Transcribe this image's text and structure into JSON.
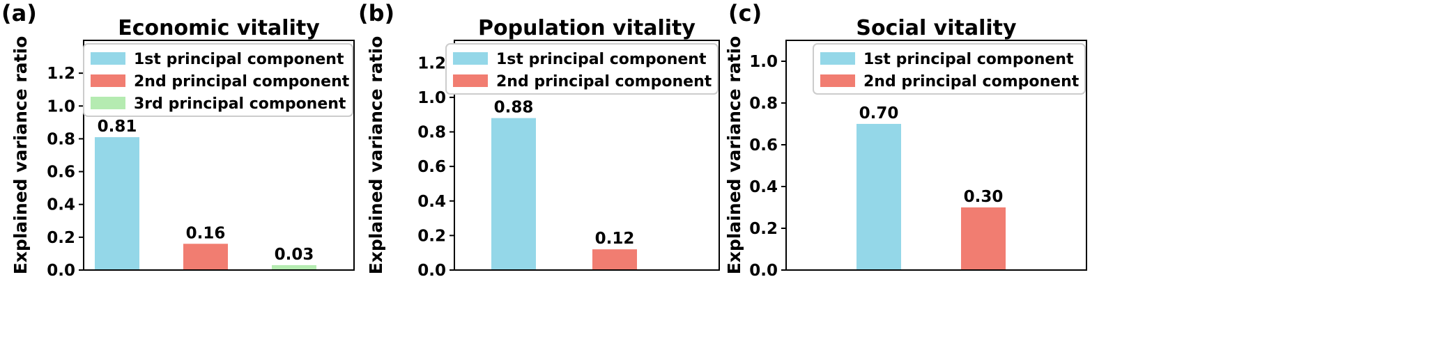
{
  "chart_data": [
    {
      "type": "bar",
      "panel_label": "(a)",
      "title": "Economic vitality",
      "ylabel": "Explained variance ratio",
      "xlabel": "",
      "ylim": [
        0,
        1.4
      ],
      "yticks": [
        "0.0",
        "0.2",
        "0.4",
        "0.6",
        "0.8",
        "1.0",
        "1.2"
      ],
      "legend_position": "top-right",
      "series": [
        {
          "name": "1st principal component",
          "value": 0.81,
          "label": "0.81",
          "color": "#94d7e8"
        },
        {
          "name": "2nd principal component",
          "value": 0.16,
          "label": "0.16",
          "color": "#f17d71"
        },
        {
          "name": "3rd principal component",
          "value": 0.03,
          "label": "0.03",
          "color": "#b5ebb1"
        }
      ]
    },
    {
      "type": "bar",
      "panel_label": "(b)",
      "title": "Population vitality",
      "ylabel": "Explained variance ratio",
      "xlabel": "",
      "ylim": [
        0,
        1.33
      ],
      "yticks": [
        "0.0",
        "0.2",
        "0.4",
        "0.6",
        "0.8",
        "1.0",
        "1.2"
      ],
      "legend_position": "top-right",
      "series": [
        {
          "name": "1st principal component",
          "value": 0.88,
          "label": "0.88",
          "color": "#94d7e8"
        },
        {
          "name": "2nd principal component",
          "value": 0.12,
          "label": "0.12",
          "color": "#f17d71"
        }
      ]
    },
    {
      "type": "bar",
      "panel_label": "(c)",
      "title": "Social vitality",
      "ylabel": "Explained variance ratio",
      "xlabel": "",
      "ylim": [
        0,
        1.1
      ],
      "yticks": [
        "0.0",
        "0.2",
        "0.4",
        "0.6",
        "0.8",
        "1.0"
      ],
      "legend_position": "top-right",
      "series": [
        {
          "name": "1st principal component",
          "value": 0.7,
          "label": "0.70",
          "color": "#94d7e8"
        },
        {
          "name": "2nd principal component",
          "value": 0.3,
          "label": "0.30",
          "color": "#f17d71"
        }
      ]
    }
  ]
}
